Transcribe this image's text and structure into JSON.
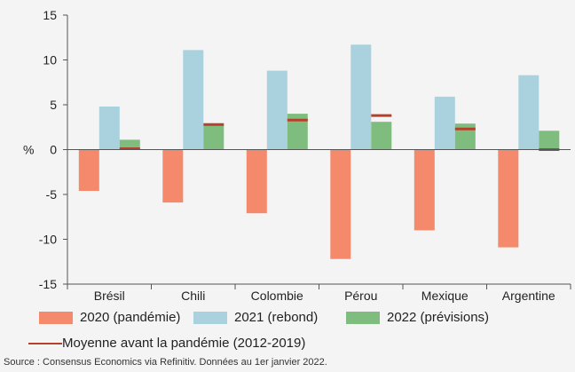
{
  "chart_data": {
    "type": "bar",
    "categories": [
      "Brésil",
      "Chili",
      "Colombie",
      "Pérou",
      "Mexique",
      "Argentine"
    ],
    "series": [
      {
        "name": "2020 (pandémie)",
        "color": "#f4896b",
        "values": [
          -4.6,
          -5.9,
          -7.1,
          -12.2,
          -9.0,
          -10.9
        ]
      },
      {
        "name": "2021 (rebond)",
        "color": "#a9d2de",
        "values": [
          4.8,
          11.1,
          8.8,
          11.7,
          5.9,
          8.3
        ]
      },
      {
        "name": "2022 (prévisions)",
        "color": "#7ebd7e",
        "values": [
          1.1,
          2.7,
          4.0,
          3.1,
          2.9,
          2.1
        ]
      }
    ],
    "pre_pandemic_average": {
      "name": "Moyenne avant la pandémie (2012-2019)",
      "color": "#b5412c",
      "values": [
        0.1,
        2.8,
        3.3,
        3.8,
        2.3,
        0.0
      ]
    },
    "ylabel": "%",
    "ylim": [
      -15,
      15
    ],
    "yticks": [
      15,
      10,
      5,
      0,
      -5,
      -10,
      -15
    ],
    "grid": false,
    "legend_placement": "bottom"
  },
  "source": "Source : Consensus Economics via Refinitiv. Données au 1er janvier 2022."
}
